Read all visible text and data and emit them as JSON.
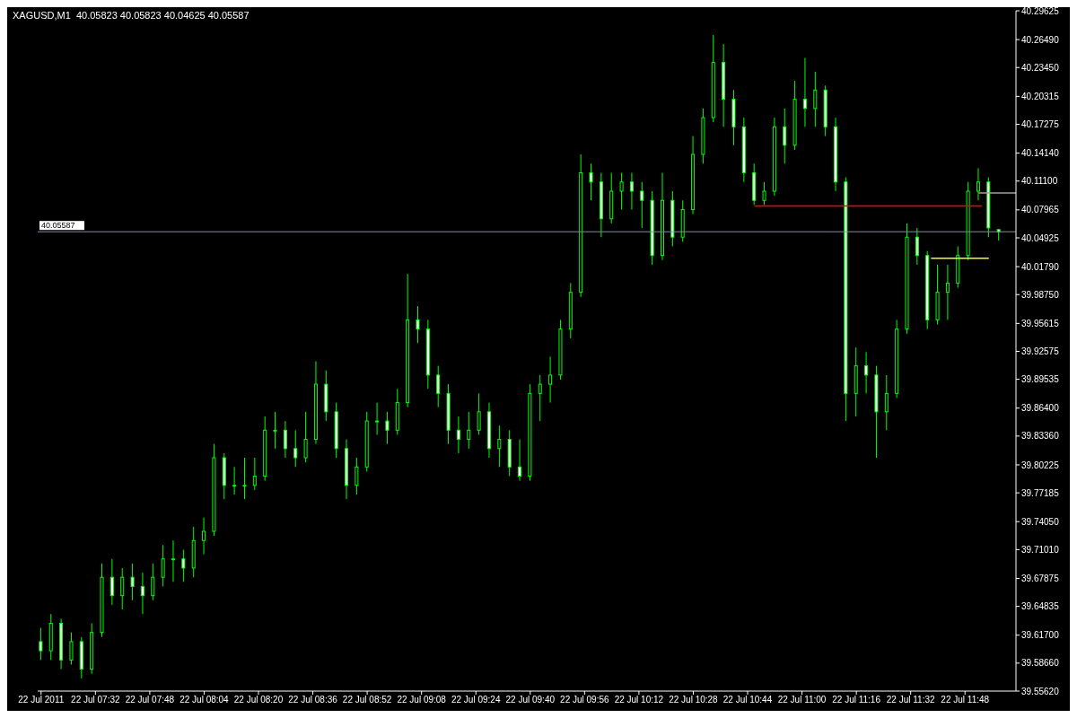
{
  "chart_data": {
    "type": "candlestick",
    "title": "XAGUSD,M1  40.05823 40.05823 40.04625 40.05587",
    "color": "#00ff00",
    "grid": false,
    "legend": false,
    "x": [
      "2011-07-22T07:16",
      "2011-07-22T07:19",
      "2011-07-22T07:22",
      "2011-07-22T07:25",
      "2011-07-22T07:28",
      "2011-07-22T07:31",
      "2011-07-22T07:34",
      "2011-07-22T07:37",
      "2011-07-22T07:40",
      "2011-07-22T07:43",
      "2011-07-22T07:46",
      "2011-07-22T07:49",
      "2011-07-22T07:52",
      "2011-07-22T07:55",
      "2011-07-22T07:58",
      "2011-07-22T08:01",
      "2011-07-22T08:04",
      "2011-07-22T08:07",
      "2011-07-22T08:10",
      "2011-07-22T08:13",
      "2011-07-22T08:16",
      "2011-07-22T08:19",
      "2011-07-22T08:22",
      "2011-07-22T08:25",
      "2011-07-22T08:28",
      "2011-07-22T08:31",
      "2011-07-22T08:34",
      "2011-07-22T08:37",
      "2011-07-22T08:40",
      "2011-07-22T08:43",
      "2011-07-22T08:46",
      "2011-07-22T08:49",
      "2011-07-22T08:52",
      "2011-07-22T08:55",
      "2011-07-22T08:58",
      "2011-07-22T09:01",
      "2011-07-22T09:04",
      "2011-07-22T09:07",
      "2011-07-22T09:10",
      "2011-07-22T09:13",
      "2011-07-22T09:16",
      "2011-07-22T09:19",
      "2011-07-22T09:22",
      "2011-07-22T09:25",
      "2011-07-22T09:28",
      "2011-07-22T09:31",
      "2011-07-22T09:34",
      "2011-07-22T09:37",
      "2011-07-22T09:40",
      "2011-07-22T09:43",
      "2011-07-22T09:46",
      "2011-07-22T09:49",
      "2011-07-22T09:52",
      "2011-07-22T09:55",
      "2011-07-22T09:58",
      "2011-07-22T10:01",
      "2011-07-22T10:04",
      "2011-07-22T10:07",
      "2011-07-22T10:10",
      "2011-07-22T10:13",
      "2011-07-22T10:16",
      "2011-07-22T10:19",
      "2011-07-22T10:22",
      "2011-07-22T10:25",
      "2011-07-22T10:28",
      "2011-07-22T10:31",
      "2011-07-22T10:34",
      "2011-07-22T10:37",
      "2011-07-22T10:40",
      "2011-07-22T10:43",
      "2011-07-22T10:46",
      "2011-07-22T10:49",
      "2011-07-22T10:52",
      "2011-07-22T10:55",
      "2011-07-22T10:58",
      "2011-07-22T11:01",
      "2011-07-22T11:04",
      "2011-07-22T11:07",
      "2011-07-22T11:10",
      "2011-07-22T11:13",
      "2011-07-22T11:16",
      "2011-07-22T11:19",
      "2011-07-22T11:22",
      "2011-07-22T11:25",
      "2011-07-22T11:28",
      "2011-07-22T11:31",
      "2011-07-22T11:34",
      "2011-07-22T11:37",
      "2011-07-22T11:40",
      "2011-07-22T11:43",
      "2011-07-22T11:46",
      "2011-07-22T11:49",
      "2011-07-22T11:52",
      "2011-07-22T11:55",
      "2011-07-22T11:58"
    ],
    "ohlc": [
      [
        39.61,
        39.625,
        39.59,
        39.6
      ],
      [
        39.6,
        39.64,
        39.59,
        39.63
      ],
      [
        39.63,
        39.635,
        39.58,
        39.59
      ],
      [
        39.59,
        39.62,
        39.585,
        39.61
      ],
      [
        39.61,
        39.615,
        39.57,
        39.58
      ],
      [
        39.58,
        39.63,
        39.575,
        39.62
      ],
      [
        39.62,
        39.695,
        39.615,
        39.68
      ],
      [
        39.68,
        39.7,
        39.65,
        39.66
      ],
      [
        39.66,
        39.69,
        39.645,
        39.68
      ],
      [
        39.68,
        39.695,
        39.655,
        39.67
      ],
      [
        39.67,
        39.685,
        39.64,
        39.66
      ],
      [
        39.66,
        39.695,
        39.655,
        39.68
      ],
      [
        39.68,
        39.715,
        39.67,
        39.7
      ],
      [
        39.7,
        39.72,
        39.675,
        39.7
      ],
      [
        39.7,
        39.71,
        39.675,
        39.69
      ],
      [
        39.69,
        39.735,
        39.68,
        39.72
      ],
      [
        39.72,
        39.745,
        39.705,
        39.73
      ],
      [
        39.73,
        39.825,
        39.725,
        39.81
      ],
      [
        39.81,
        39.815,
        39.765,
        39.78
      ],
      [
        39.78,
        39.8,
        39.77,
        39.78
      ],
      [
        39.78,
        39.81,
        39.765,
        39.78
      ],
      [
        39.78,
        39.81,
        39.775,
        39.79
      ],
      [
        39.79,
        39.855,
        39.785,
        39.84
      ],
      [
        39.84,
        39.86,
        39.82,
        39.84
      ],
      [
        39.84,
        39.85,
        39.81,
        39.82
      ],
      [
        39.82,
        39.84,
        39.8,
        39.81
      ],
      [
        39.81,
        39.86,
        39.805,
        39.83
      ],
      [
        39.83,
        39.915,
        39.825,
        39.89
      ],
      [
        39.89,
        39.905,
        39.85,
        39.86
      ],
      [
        39.86,
        39.87,
        39.81,
        39.82
      ],
      [
        39.82,
        39.83,
        39.765,
        39.78
      ],
      [
        39.78,
        39.81,
        39.77,
        39.8
      ],
      [
        39.8,
        39.86,
        39.795,
        39.85
      ],
      [
        39.85,
        39.87,
        39.835,
        39.85
      ],
      [
        39.85,
        39.86,
        39.825,
        39.84
      ],
      [
        39.84,
        39.885,
        39.835,
        39.87
      ],
      [
        39.87,
        40.01,
        39.865,
        39.96
      ],
      [
        39.96,
        39.975,
        39.935,
        39.95
      ],
      [
        39.95,
        39.96,
        39.885,
        39.9
      ],
      [
        39.9,
        39.91,
        39.865,
        39.88
      ],
      [
        39.88,
        39.89,
        39.825,
        39.84
      ],
      [
        39.84,
        39.855,
        39.815,
        39.83
      ],
      [
        39.83,
        39.86,
        39.82,
        39.84
      ],
      [
        39.84,
        39.88,
        39.835,
        39.86
      ],
      [
        39.86,
        39.87,
        39.81,
        39.82
      ],
      [
        39.82,
        39.845,
        39.8,
        39.83
      ],
      [
        39.83,
        39.84,
        39.79,
        39.8
      ],
      [
        39.8,
        39.83,
        39.785,
        39.79
      ],
      [
        39.79,
        39.89,
        39.785,
        39.88
      ],
      [
        39.88,
        39.9,
        39.85,
        39.89
      ],
      [
        39.89,
        39.92,
        39.87,
        39.9
      ],
      [
        39.9,
        39.96,
        39.895,
        39.95
      ],
      [
        39.95,
        40.0,
        39.94,
        39.99
      ],
      [
        39.99,
        40.14,
        39.985,
        40.12
      ],
      [
        40.12,
        40.13,
        40.09,
        40.11
      ],
      [
        40.11,
        40.12,
        40.05,
        40.07
      ],
      [
        40.07,
        40.12,
        40.065,
        40.1
      ],
      [
        40.1,
        40.12,
        40.08,
        40.11
      ],
      [
        40.11,
        40.12,
        40.08,
        40.1
      ],
      [
        40.1,
        40.11,
        40.06,
        40.09
      ],
      [
        40.09,
        40.1,
        40.02,
        40.03
      ],
      [
        40.03,
        40.12,
        40.025,
        40.09
      ],
      [
        40.09,
        40.1,
        40.04,
        40.05
      ],
      [
        40.05,
        40.09,
        40.045,
        40.08
      ],
      [
        40.08,
        40.16,
        40.075,
        40.14
      ],
      [
        40.14,
        40.19,
        40.13,
        40.18
      ],
      [
        40.18,
        40.27,
        40.175,
        40.24
      ],
      [
        40.24,
        40.26,
        40.17,
        40.2
      ],
      [
        40.2,
        40.21,
        40.15,
        40.17
      ],
      [
        40.17,
        40.18,
        40.11,
        40.12
      ],
      [
        40.12,
        40.13,
        40.085,
        40.09
      ],
      [
        40.09,
        40.11,
        40.085,
        40.1
      ],
      [
        40.1,
        40.18,
        40.095,
        40.17
      ],
      [
        40.17,
        40.19,
        40.13,
        40.15
      ],
      [
        40.15,
        40.22,
        40.145,
        40.2
      ],
      [
        40.2,
        40.245,
        40.17,
        40.19
      ],
      [
        40.19,
        40.23,
        40.17,
        40.21
      ],
      [
        40.21,
        40.215,
        40.16,
        40.17
      ],
      [
        40.17,
        40.18,
        40.1,
        40.11
      ],
      [
        40.11,
        40.115,
        39.85,
        39.88
      ],
      [
        39.88,
        39.93,
        39.855,
        39.91
      ],
      [
        39.91,
        39.925,
        39.88,
        39.9
      ],
      [
        39.9,
        39.91,
        39.81,
        39.86
      ],
      [
        39.86,
        39.9,
        39.84,
        39.88
      ],
      [
        39.88,
        39.96,
        39.875,
        39.95
      ],
      [
        39.95,
        40.065,
        39.945,
        40.05
      ],
      [
        40.05,
        40.06,
        40.02,
        40.03
      ],
      [
        40.03,
        40.035,
        39.95,
        39.96
      ],
      [
        39.96,
        40.02,
        39.955,
        39.99
      ],
      [
        39.99,
        40.02,
        39.96,
        40.0
      ],
      [
        40.0,
        40.04,
        39.995,
        40.03
      ],
      [
        40.03,
        40.11,
        40.025,
        40.1
      ],
      [
        40.1,
        40.125,
        40.09,
        40.11
      ],
      [
        40.11,
        40.115,
        40.05,
        40.06
      ],
      [
        40.05823,
        40.05823,
        40.04625,
        40.05587
      ]
    ],
    "series": [
      {
        "type": "line",
        "color": "#ff0000",
        "x": [
          "2011-07-22T10:46",
          "2011-07-22T11:53"
        ],
        "values": [
          40.084,
          40.084
        ]
      },
      {
        "type": "line",
        "color": "#ffff00",
        "x": [
          "2011-07-22T11:38",
          "2011-07-22T11:55"
        ],
        "values": [
          40.027,
          40.027
        ]
      },
      {
        "type": "line",
        "color": "#a0a0a0",
        "x": [
          "2011-07-22T11:52",
          "2011-07-22T12:03"
        ],
        "values": [
          40.098,
          40.098
        ]
      }
    ],
    "ref_lines": [
      {
        "axis": "y",
        "value": 40.05587,
        "label": "40.05587",
        "color": "#8090a0"
      }
    ],
    "xlim": [
      "2011-07-22T07:15",
      "2011-07-22T12:03"
    ],
    "xticks": [
      {
        "value": "2011-07-22T07:16",
        "label": "22 Jul 2011"
      },
      {
        "value": "2011-07-22T07:32",
        "label": "22 Jul 07:32"
      },
      {
        "value": "2011-07-22T07:48",
        "label": "22 Jul 07:48"
      },
      {
        "value": "2011-07-22T08:04",
        "label": "22 Jul 08:04"
      },
      {
        "value": "2011-07-22T08:20",
        "label": "22 Jul 08:20"
      },
      {
        "value": "2011-07-22T08:36",
        "label": "22 Jul 08:36"
      },
      {
        "value": "2011-07-22T08:52",
        "label": "22 Jul 08:52"
      },
      {
        "value": "2011-07-22T09:08",
        "label": "22 Jul 09:08"
      },
      {
        "value": "2011-07-22T09:24",
        "label": "22 Jul 09:24"
      },
      {
        "value": "2011-07-22T09:40",
        "label": "22 Jul 09:40"
      },
      {
        "value": "2011-07-22T09:56",
        "label": "22 Jul 09:56"
      },
      {
        "value": "2011-07-22T10:12",
        "label": "22 Jul 10:12"
      },
      {
        "value": "2011-07-22T10:28",
        "label": "22 Jul 10:28"
      },
      {
        "value": "2011-07-22T10:44",
        "label": "22 Jul 10:44"
      },
      {
        "value": "2011-07-22T11:00",
        "label": "22 Jul 11:00"
      },
      {
        "value": "2011-07-22T11:16",
        "label": "22 Jul 11:16"
      },
      {
        "value": "2011-07-22T11:32",
        "label": "22 Jul 11:32"
      },
      {
        "value": "2011-07-22T11:48",
        "label": "22 Jul 11:48"
      }
    ],
    "ylim": [
      39.5562,
      40.29625
    ],
    "yticks": [
      {
        "value": 40.29625,
        "label": "40.29625"
      },
      {
        "value": 40.2649,
        "label": "40.26490"
      },
      {
        "value": 40.2345,
        "label": "40.23450"
      },
      {
        "value": 40.20315,
        "label": "40.20315"
      },
      {
        "value": 40.17275,
        "label": "40.17275"
      },
      {
        "value": 40.1414,
        "label": "40.14140"
      },
      {
        "value": 40.111,
        "label": "40.11100"
      },
      {
        "value": 40.07965,
        "label": "40.07965"
      },
      {
        "value": 40.04925,
        "label": "40.04925"
      },
      {
        "value": 40.0179,
        "label": "40.01790"
      },
      {
        "value": 39.9875,
        "label": "39.98750"
      },
      {
        "value": 39.95615,
        "label": "39.95615"
      },
      {
        "value": 39.92575,
        "label": "39.92575"
      },
      {
        "value": 39.89535,
        "label": "39.89535"
      },
      {
        "value": 39.864,
        "label": "39.86400"
      },
      {
        "value": 39.8336,
        "label": "39.83360"
      },
      {
        "value": 39.80225,
        "label": "39.80225"
      },
      {
        "value": 39.77185,
        "label": "39.77185"
      },
      {
        "value": 39.7405,
        "label": "39.74050"
      },
      {
        "value": 39.7101,
        "label": "39.71010"
      },
      {
        "value": 39.67875,
        "label": "39.67875"
      },
      {
        "value": 39.64835,
        "label": "39.64835"
      },
      {
        "value": 39.617,
        "label": "39.61700"
      },
      {
        "value": 39.5866,
        "label": "39.58660"
      },
      {
        "value": 39.5562,
        "label": "39.55620"
      }
    ]
  }
}
